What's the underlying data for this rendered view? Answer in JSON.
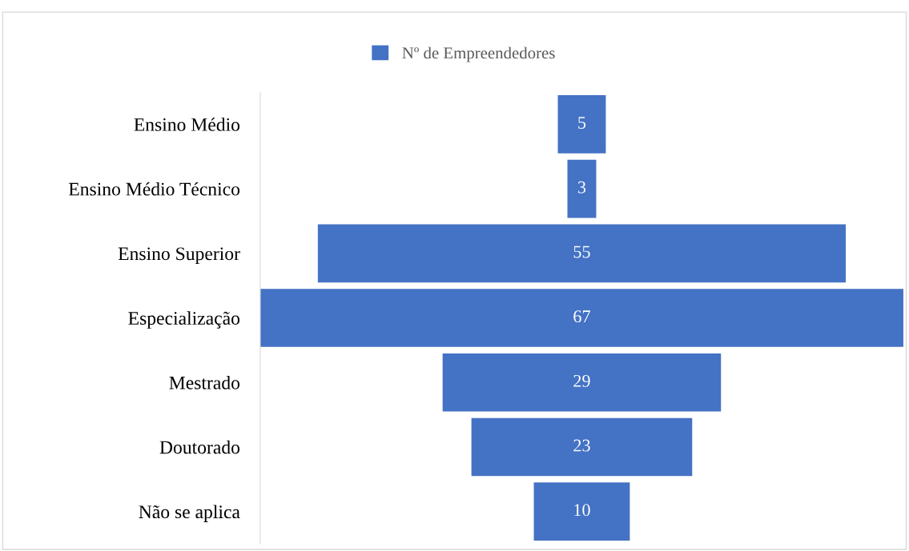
{
  "chart_data": {
    "type": "other",
    "categories": [
      "Ensino Médio",
      "Ensino Médio Técnico",
      "Ensino Superior",
      "Especialização",
      "Mestrado",
      "Doutorado",
      "Não se aplica"
    ],
    "series": [
      {
        "name": "Nº de Empreendedores",
        "color": "#4472c4",
        "values": [
          5,
          3,
          55,
          67,
          29,
          23,
          10
        ]
      }
    ],
    "data_labels": true,
    "legend": "top"
  }
}
